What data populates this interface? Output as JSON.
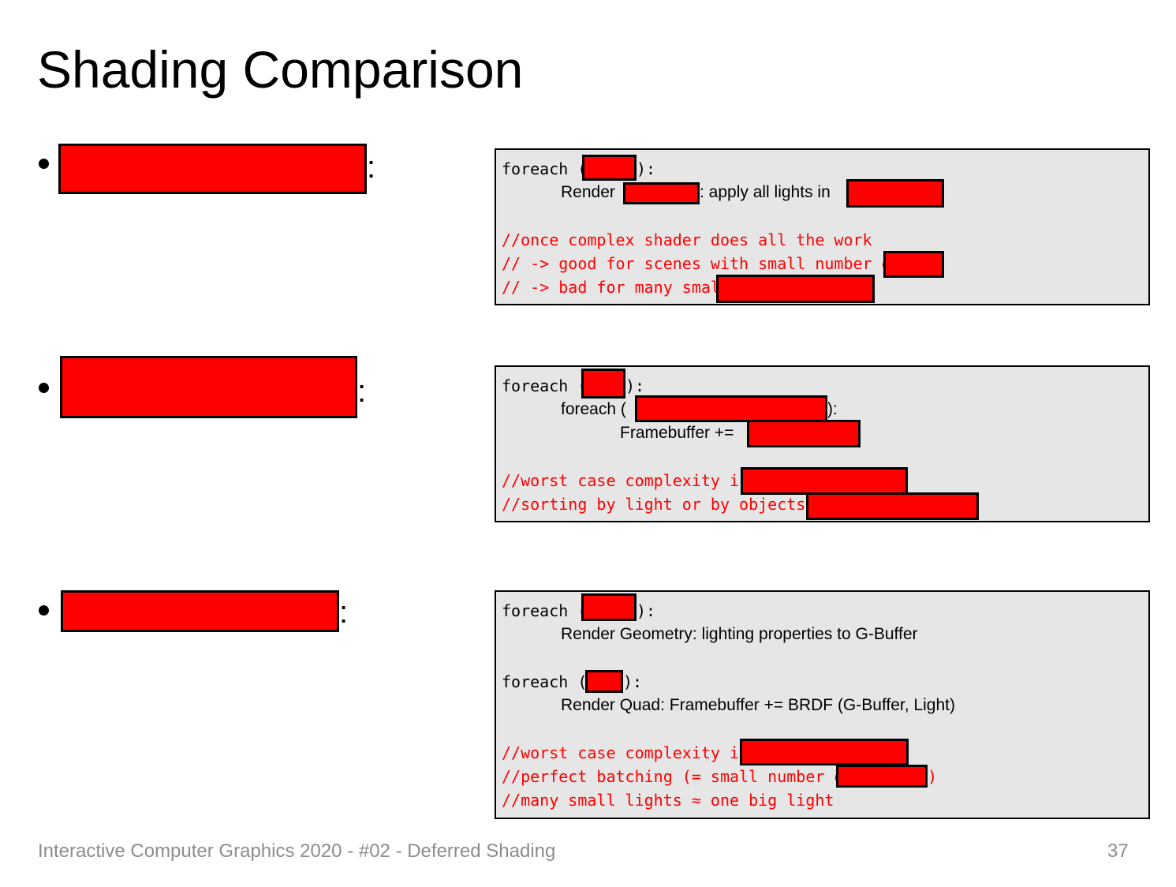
{
  "slide": {
    "title": "Shading Comparison",
    "footer_text": "Interactive Computer Graphics 2020 - #02 - Deferred Shading",
    "page_number": "37"
  },
  "bullets": [
    {
      "colon": ":"
    },
    {
      "colon": ":"
    },
    {
      "colon": ":"
    }
  ],
  "box1": {
    "l1a": "foreach (",
    "l1b": "):",
    "l2a": "Render ",
    "l2b": ": apply all lights in",
    "c1": "//once complex shader does all the work",
    "c2": "// -> good for scenes with small number of",
    "c3": "// -> bad for many small"
  },
  "box2": {
    "l1a": "foreach (",
    "l1b": "):",
    "l2a": "foreach (",
    "l2b": "):",
    "l3a": "Framebuffer +=",
    "c1": "//worst case complexity is",
    "c2": "//sorting by light or by objects are"
  },
  "box3": {
    "l1a": "foreach (",
    "l1b": "):",
    "l2": "Render Geometry: lighting properties to G-Buffer",
    "l3a": "foreach (",
    "l3b": "):",
    "l4": "Render Quad: Framebuffer += BRDF (G-Buffer, Light)",
    "c1": "//worst case complexity is",
    "c2a": "//perfect batching (= small number of",
    "c2b": ")",
    "c3": "//many small lights ≈ one big light"
  },
  "colors": {
    "redaction": "#ff0000",
    "code_bg": "#e6e6e6",
    "comment": "#ff0000",
    "footer": "#8c8c8c"
  }
}
